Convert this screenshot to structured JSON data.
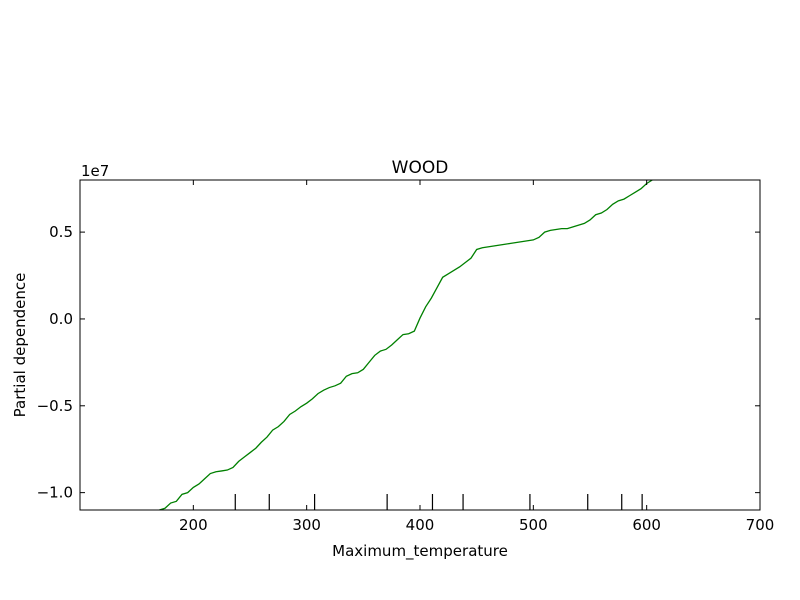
{
  "chart_data": {
    "type": "line",
    "title": "WOOD",
    "xlabel": "Maximum_temperature",
    "ylabel": "Partial dependence",
    "y_offset_label": "1e7",
    "xlim": [
      100,
      700
    ],
    "ylim": [
      -11000000,
      8000000
    ],
    "grid": false,
    "x_ticks": [
      200,
      300,
      400,
      500,
      600,
      700
    ],
    "x_tick_labels": [
      "200",
      "300",
      "400",
      "500",
      "600",
      "700"
    ],
    "y_ticks": [
      -10000000,
      -5000000,
      0,
      5000000
    ],
    "y_tick_labels": [
      "−1.0",
      "−0.5",
      "0.0",
      "0.5"
    ],
    "series": [
      {
        "color": "#008000",
        "x": [
          170,
          175,
          180,
          185,
          190,
          195,
          200,
          205,
          210,
          215,
          220,
          225,
          230,
          235,
          240,
          245,
          250,
          255,
          260,
          265,
          270,
          275,
          280,
          285,
          290,
          295,
          300,
          305,
          310,
          315,
          320,
          325,
          330,
          335,
          340,
          345,
          350,
          355,
          360,
          365,
          370,
          375,
          380,
          385,
          390,
          395,
          400,
          405,
          410,
          415,
          420,
          425,
          430,
          435,
          440,
          445,
          450,
          455,
          460,
          465,
          470,
          475,
          480,
          485,
          490,
          495,
          500,
          505,
          510,
          515,
          520,
          525,
          530,
          535,
          540,
          545,
          550,
          555,
          560,
          565,
          570,
          575,
          580,
          585,
          590,
          595,
          600,
          605
        ],
        "y": [
          -11000000,
          -10900000,
          -10600000,
          -10500000,
          -10100000,
          -10000000,
          -9700000,
          -9500000,
          -9200000,
          -8900000,
          -8800000,
          -8750000,
          -8700000,
          -8550000,
          -8200000,
          -7950000,
          -7700000,
          -7450000,
          -7100000,
          -6800000,
          -6400000,
          -6200000,
          -5900000,
          -5500000,
          -5300000,
          -5050000,
          -4850000,
          -4600000,
          -4300000,
          -4100000,
          -3950000,
          -3850000,
          -3700000,
          -3300000,
          -3150000,
          -3100000,
          -2900000,
          -2500000,
          -2100000,
          -1850000,
          -1750000,
          -1500000,
          -1200000,
          -900000,
          -850000,
          -700000,
          50000,
          700000,
          1200000,
          1800000,
          2400000,
          2600000,
          2800000,
          3000000,
          3250000,
          3500000,
          4000000,
          4100000,
          4150000,
          4200000,
          4250000,
          4300000,
          4350000,
          4400000,
          4450000,
          4500000,
          4550000,
          4700000,
          5000000,
          5100000,
          5150000,
          5200000,
          5200000,
          5300000,
          5400000,
          5500000,
          5700000,
          6000000,
          6100000,
          6300000,
          6600000,
          6800000,
          6900000,
          7100000,
          7300000,
          7500000,
          7800000,
          8000000
        ]
      }
    ],
    "rug_x": [
      237,
      267,
      307,
      371,
      411,
      438,
      497,
      548,
      578,
      596
    ]
  }
}
